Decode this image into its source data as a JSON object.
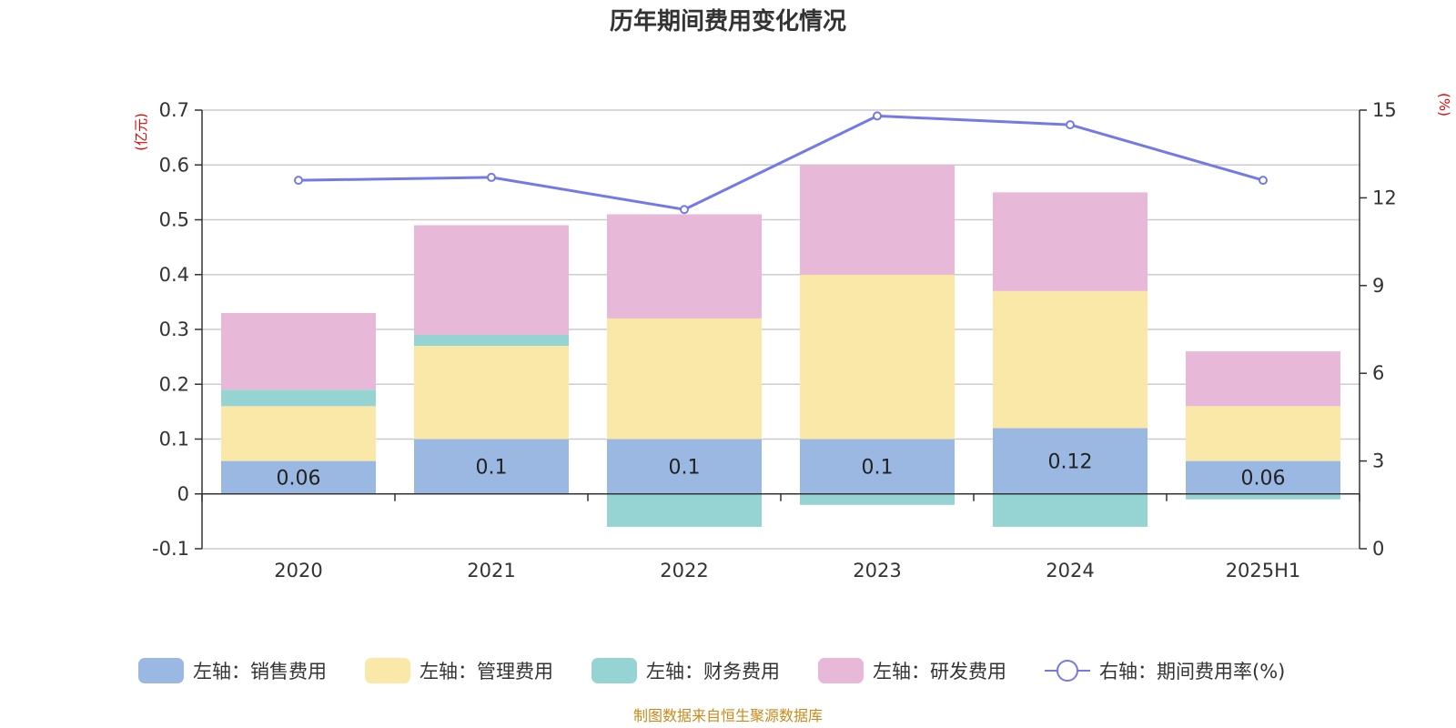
{
  "chart_data": {
    "type": "bar",
    "title": "历年期间费用变化情况",
    "categories": [
      "2020",
      "2021",
      "2022",
      "2023",
      "2024",
      "2025H1"
    ],
    "left_axis": {
      "unit": "(亿元)",
      "ylim": [
        -0.1,
        0.7
      ],
      "ticks": [
        "-0.1",
        "0",
        "0.1",
        "0.2",
        "0.3",
        "0.4",
        "0.5",
        "0.6",
        "0.7"
      ]
    },
    "right_axis": {
      "unit": "(%)",
      "ylim": [
        0,
        15
      ],
      "ticks": [
        "0",
        "3",
        "6",
        "9",
        "12",
        "15"
      ]
    },
    "series": [
      {
        "name": "左轴：销售费用",
        "type": "bar",
        "color": "#9bb8e3",
        "values": [
          0.06,
          0.1,
          0.1,
          0.1,
          0.12,
          0.06
        ],
        "labels": [
          "0.06",
          "0.1",
          "0.1",
          "0.1",
          "0.12",
          "0.06"
        ]
      },
      {
        "name": "左轴：管理费用",
        "type": "bar",
        "color": "#f9e8a8",
        "values": [
          0.1,
          0.17,
          0.22,
          0.3,
          0.25,
          0.1
        ]
      },
      {
        "name": "左轴：财务费用",
        "type": "bar",
        "color": "#96d4d4",
        "values": [
          0.03,
          0.02,
          -0.06,
          -0.02,
          -0.06,
          -0.01
        ]
      },
      {
        "name": "左轴：研发费用",
        "type": "bar",
        "color": "#e8b8d9",
        "values": [
          0.14,
          0.2,
          0.19,
          0.2,
          0.18,
          0.1
        ]
      },
      {
        "name": "右轴：期间费用率(%)",
        "type": "line",
        "color": "#7479e8",
        "values": [
          12.6,
          12.7,
          11.6,
          14.8,
          14.5,
          12.6
        ]
      }
    ],
    "grid": true,
    "legend_position": "bottom"
  },
  "source": "制图数据来自恒生聚源数据库"
}
